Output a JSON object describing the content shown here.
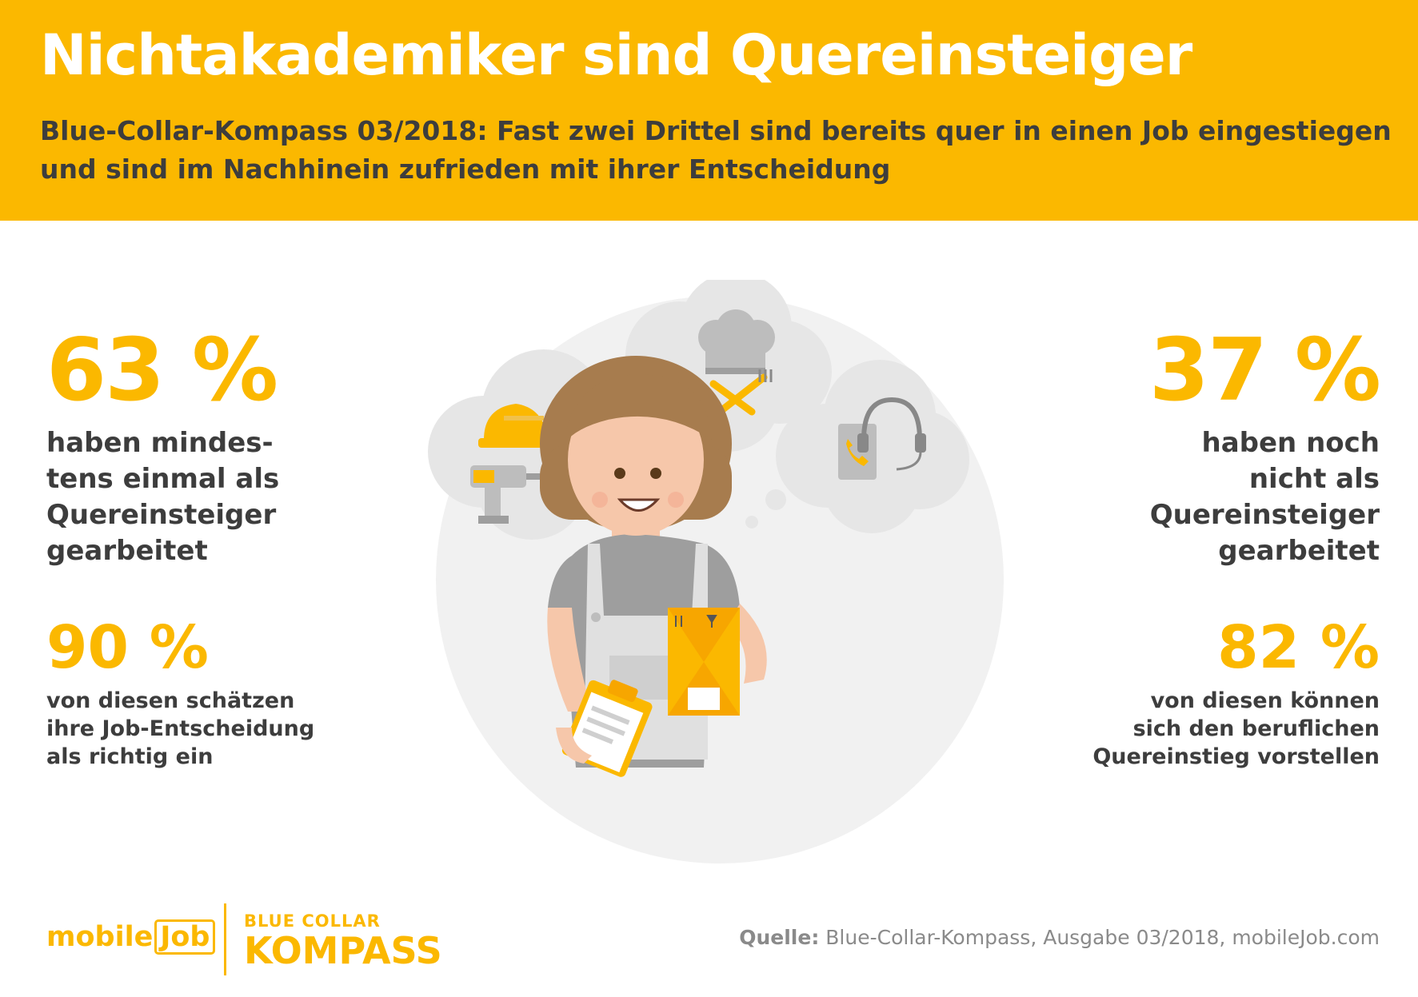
{
  "header": {
    "title": "Nichtakademiker sind Quereinsteiger",
    "subtitle_line1": "Blue-Collar-Kompass 03/2018: Fast zwei Drittel sind bereits quer in einen Job eingestiegen",
    "subtitle_line2": "und sind im Nachhinein zufrieden mit ihrer Entscheidung"
  },
  "stats": {
    "left_main": {
      "value": "63 %",
      "lines": [
        "haben mindes-",
        "tens einmal als",
        "Quereinsteiger",
        "gearbeitet"
      ]
    },
    "left_sub": {
      "value": "90 %",
      "lines": [
        "von diesen schätzen",
        "ihre Job-Entscheidung",
        "als richtig ein"
      ]
    },
    "right_main": {
      "value": "37 %",
      "lines": [
        "haben noch",
        "nicht als",
        "Quereinsteiger",
        "gearbeitet"
      ]
    },
    "right_sub": {
      "value": "82 %",
      "lines": [
        "von diesen können",
        "sich den beruflichen",
        "Quereinstieg vorstellen"
      ]
    }
  },
  "footer": {
    "logo_mobile": "mobile",
    "logo_job": "Job",
    "kompass_line1": "BLUE COLLAR",
    "kompass_line2": "KOMPASS",
    "source_label": "Quelle:",
    "source_text": " Blue-Collar-Kompass, Ausgabe 03/2018, mobileJob.com"
  },
  "colors": {
    "accent": "#fbb800",
    "text": "#3d3d3d",
    "muted": "#8a8a8a",
    "bubble": "#f1f1f1"
  },
  "icons": [
    "hard-hat-icon",
    "drill-icon",
    "chef-hat-icon",
    "cutlery-icon",
    "headset-icon",
    "phone-book-icon",
    "package-icon",
    "clipboard-icon"
  ]
}
